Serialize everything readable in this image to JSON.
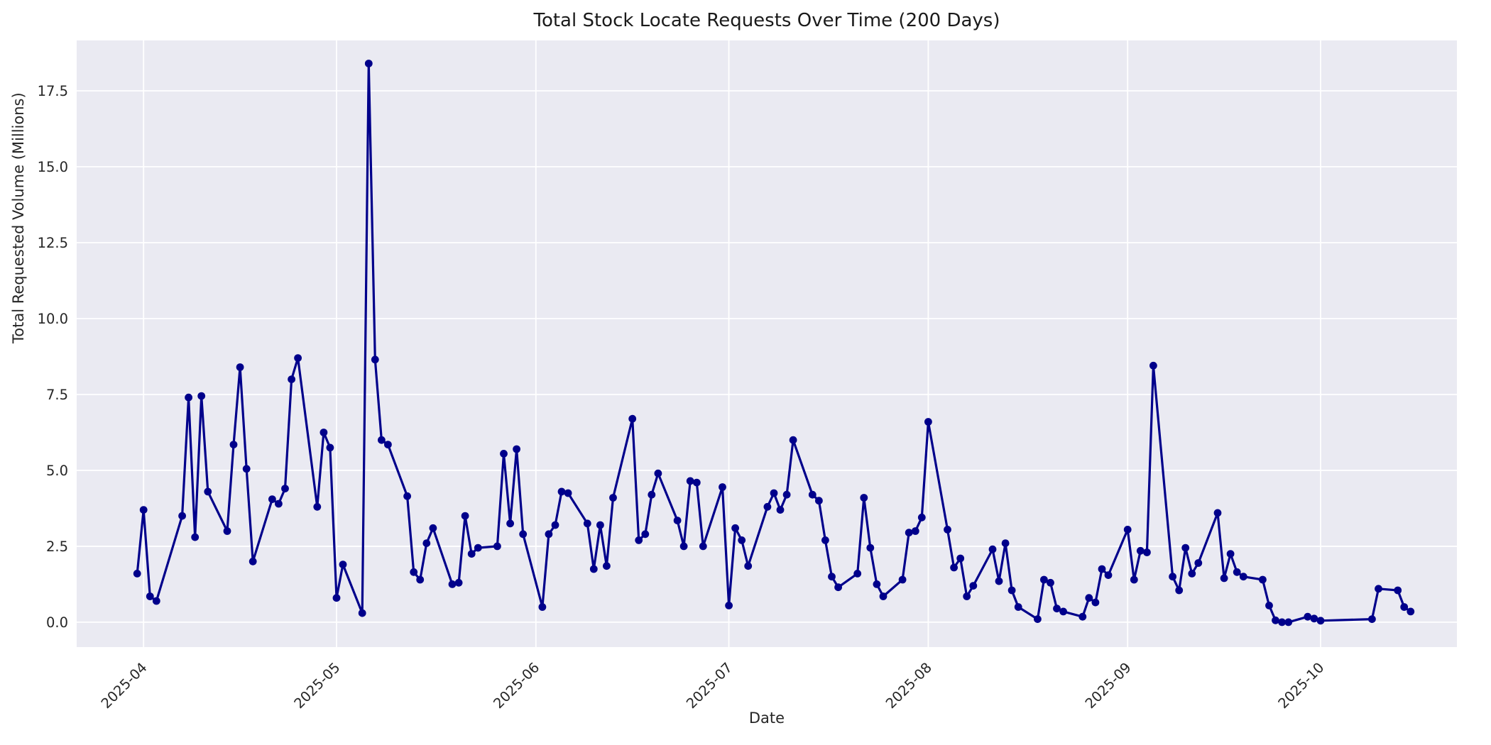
{
  "figure": {
    "title": "Total Stock Locate Requests Over Time (200 Days)",
    "xlabel": "Date",
    "ylabel": "Total Requested Volume (Millions)"
  },
  "chart_data": {
    "type": "line",
    "title": "Total Stock Locate Requests Over Time (200 Days)",
    "xlabel": "Date",
    "ylabel": "Total Requested Volume (Millions)",
    "legend": null,
    "grid": true,
    "style": {
      "plot_bg": "#EAEAF2",
      "grid_color": "#FFFFFF",
      "line_color": "#00008B",
      "marker_color": "#00008B",
      "text_color": "#262626",
      "title_color": "#1a1a1a"
    },
    "ylim": [
      -0.82,
      19.16
    ],
    "xlim_days_from_2025_04_01": [
      -10.4,
      204.2
    ],
    "yticks": [
      0.0,
      2.5,
      5.0,
      7.5,
      10.0,
      12.5,
      15.0,
      17.5
    ],
    "ytick_labels": [
      "0.0",
      "2.5",
      "5.0",
      "7.5",
      "10.0",
      "12.5",
      "15.0",
      "17.5"
    ],
    "xticks": [
      {
        "date": "2025-04-01",
        "label": "2025-04"
      },
      {
        "date": "2025-05-01",
        "label": "2025-05"
      },
      {
        "date": "2025-06-01",
        "label": "2025-06"
      },
      {
        "date": "2025-07-01",
        "label": "2025-07"
      },
      {
        "date": "2025-08-01",
        "label": "2025-08"
      },
      {
        "date": "2025-09-01",
        "label": "2025-09"
      },
      {
        "date": "2025-10-01",
        "label": "2025-10"
      }
    ],
    "series": [
      {
        "name": "total_requested_volume",
        "color": "#00008B",
        "points": [
          [
            "2025-03-31",
            1.6
          ],
          [
            "2025-04-01",
            3.7
          ],
          [
            "2025-04-02",
            0.85
          ],
          [
            "2025-04-03",
            0.7
          ],
          [
            "2025-04-07",
            3.5
          ],
          [
            "2025-04-08",
            7.4
          ],
          [
            "2025-04-09",
            2.8
          ],
          [
            "2025-04-10",
            7.45
          ],
          [
            "2025-04-11",
            4.3
          ],
          [
            "2025-04-14",
            3.0
          ],
          [
            "2025-04-15",
            5.85
          ],
          [
            "2025-04-16",
            8.4
          ],
          [
            "2025-04-17",
            5.05
          ],
          [
            "2025-04-18",
            2.0
          ],
          [
            "2025-04-21",
            4.05
          ],
          [
            "2025-04-22",
            3.9
          ],
          [
            "2025-04-23",
            4.4
          ],
          [
            "2025-04-24",
            8.0
          ],
          [
            "2025-04-25",
            8.7
          ],
          [
            "2025-04-28",
            3.8
          ],
          [
            "2025-04-29",
            6.25
          ],
          [
            "2025-04-30",
            5.75
          ],
          [
            "2025-05-01",
            0.8
          ],
          [
            "2025-05-02",
            1.9
          ],
          [
            "2025-05-05",
            0.3
          ],
          [
            "2025-05-06",
            18.4
          ],
          [
            "2025-05-07",
            8.65
          ],
          [
            "2025-05-08",
            6.0
          ],
          [
            "2025-05-09",
            5.85
          ],
          [
            "2025-05-12",
            4.15
          ],
          [
            "2025-05-13",
            1.65
          ],
          [
            "2025-05-14",
            1.4
          ],
          [
            "2025-05-15",
            2.6
          ],
          [
            "2025-05-16",
            3.1
          ],
          [
            "2025-05-19",
            1.25
          ],
          [
            "2025-05-20",
            1.3
          ],
          [
            "2025-05-21",
            3.5
          ],
          [
            "2025-05-22",
            2.25
          ],
          [
            "2025-05-23",
            2.45
          ],
          [
            "2025-05-26",
            2.5
          ],
          [
            "2025-05-27",
            5.55
          ],
          [
            "2025-05-28",
            3.25
          ],
          [
            "2025-05-29",
            5.7
          ],
          [
            "2025-05-30",
            2.9
          ],
          [
            "2025-06-02",
            0.5
          ],
          [
            "2025-06-03",
            2.9
          ],
          [
            "2025-06-04",
            3.2
          ],
          [
            "2025-06-05",
            4.3
          ],
          [
            "2025-06-06",
            4.25
          ],
          [
            "2025-06-09",
            3.25
          ],
          [
            "2025-06-10",
            1.75
          ],
          [
            "2025-06-11",
            3.2
          ],
          [
            "2025-06-12",
            1.85
          ],
          [
            "2025-06-13",
            4.1
          ],
          [
            "2025-06-16",
            6.7
          ],
          [
            "2025-06-17",
            2.7
          ],
          [
            "2025-06-18",
            2.9
          ],
          [
            "2025-06-19",
            4.2
          ],
          [
            "2025-06-20",
            4.9
          ],
          [
            "2025-06-23",
            3.35
          ],
          [
            "2025-06-24",
            2.5
          ],
          [
            "2025-06-25",
            4.65
          ],
          [
            "2025-06-26",
            4.6
          ],
          [
            "2025-06-27",
            2.5
          ],
          [
            "2025-06-30",
            4.45
          ],
          [
            "2025-07-01",
            0.55
          ],
          [
            "2025-07-02",
            3.1
          ],
          [
            "2025-07-03",
            2.7
          ],
          [
            "2025-07-04",
            1.85
          ],
          [
            "2025-07-07",
            3.8
          ],
          [
            "2025-07-08",
            4.25
          ],
          [
            "2025-07-09",
            3.7
          ],
          [
            "2025-07-10",
            4.2
          ],
          [
            "2025-07-11",
            6.0
          ],
          [
            "2025-07-14",
            4.2
          ],
          [
            "2025-07-15",
            4.0
          ],
          [
            "2025-07-16",
            2.7
          ],
          [
            "2025-07-17",
            1.5
          ],
          [
            "2025-07-18",
            1.15
          ],
          [
            "2025-07-21",
            1.6
          ],
          [
            "2025-07-22",
            4.1
          ],
          [
            "2025-07-23",
            2.45
          ],
          [
            "2025-07-24",
            1.25
          ],
          [
            "2025-07-25",
            0.85
          ],
          [
            "2025-07-28",
            1.4
          ],
          [
            "2025-07-29",
            2.95
          ],
          [
            "2025-07-30",
            3.0
          ],
          [
            "2025-07-31",
            3.45
          ],
          [
            "2025-08-01",
            6.6
          ],
          [
            "2025-08-04",
            3.05
          ],
          [
            "2025-08-05",
            1.8
          ],
          [
            "2025-08-06",
            2.1
          ],
          [
            "2025-08-07",
            0.85
          ],
          [
            "2025-08-08",
            1.2
          ],
          [
            "2025-08-11",
            2.4
          ],
          [
            "2025-08-12",
            1.35
          ],
          [
            "2025-08-13",
            2.6
          ],
          [
            "2025-08-14",
            1.05
          ],
          [
            "2025-08-15",
            0.5
          ],
          [
            "2025-08-18",
            0.1
          ],
          [
            "2025-08-19",
            1.4
          ],
          [
            "2025-08-20",
            1.3
          ],
          [
            "2025-08-21",
            0.45
          ],
          [
            "2025-08-22",
            0.35
          ],
          [
            "2025-08-25",
            0.18
          ],
          [
            "2025-08-26",
            0.8
          ],
          [
            "2025-08-27",
            0.65
          ],
          [
            "2025-08-28",
            1.75
          ],
          [
            "2025-08-29",
            1.55
          ],
          [
            "2025-09-01",
            3.05
          ],
          [
            "2025-09-02",
            1.4
          ],
          [
            "2025-09-03",
            2.35
          ],
          [
            "2025-09-04",
            2.3
          ],
          [
            "2025-09-05",
            8.45
          ],
          [
            "2025-09-08",
            1.5
          ],
          [
            "2025-09-09",
            1.05
          ],
          [
            "2025-09-10",
            2.45
          ],
          [
            "2025-09-11",
            1.6
          ],
          [
            "2025-09-12",
            1.95
          ],
          [
            "2025-09-15",
            3.6
          ],
          [
            "2025-09-16",
            1.45
          ],
          [
            "2025-09-17",
            2.25
          ],
          [
            "2025-09-18",
            1.65
          ],
          [
            "2025-09-19",
            1.5
          ],
          [
            "2025-09-22",
            1.4
          ],
          [
            "2025-09-23",
            0.55
          ],
          [
            "2025-09-24",
            0.06
          ],
          [
            "2025-09-25",
            0.0
          ],
          [
            "2025-09-26",
            0.0
          ],
          [
            "2025-09-29",
            0.18
          ],
          [
            "2025-09-30",
            0.12
          ],
          [
            "2025-10-01",
            0.05
          ],
          [
            "2025-10-09",
            0.1
          ],
          [
            "2025-10-10",
            1.1
          ],
          [
            "2025-10-13",
            1.05
          ],
          [
            "2025-10-14",
            0.5
          ],
          [
            "2025-10-15",
            0.35
          ]
        ]
      }
    ]
  }
}
